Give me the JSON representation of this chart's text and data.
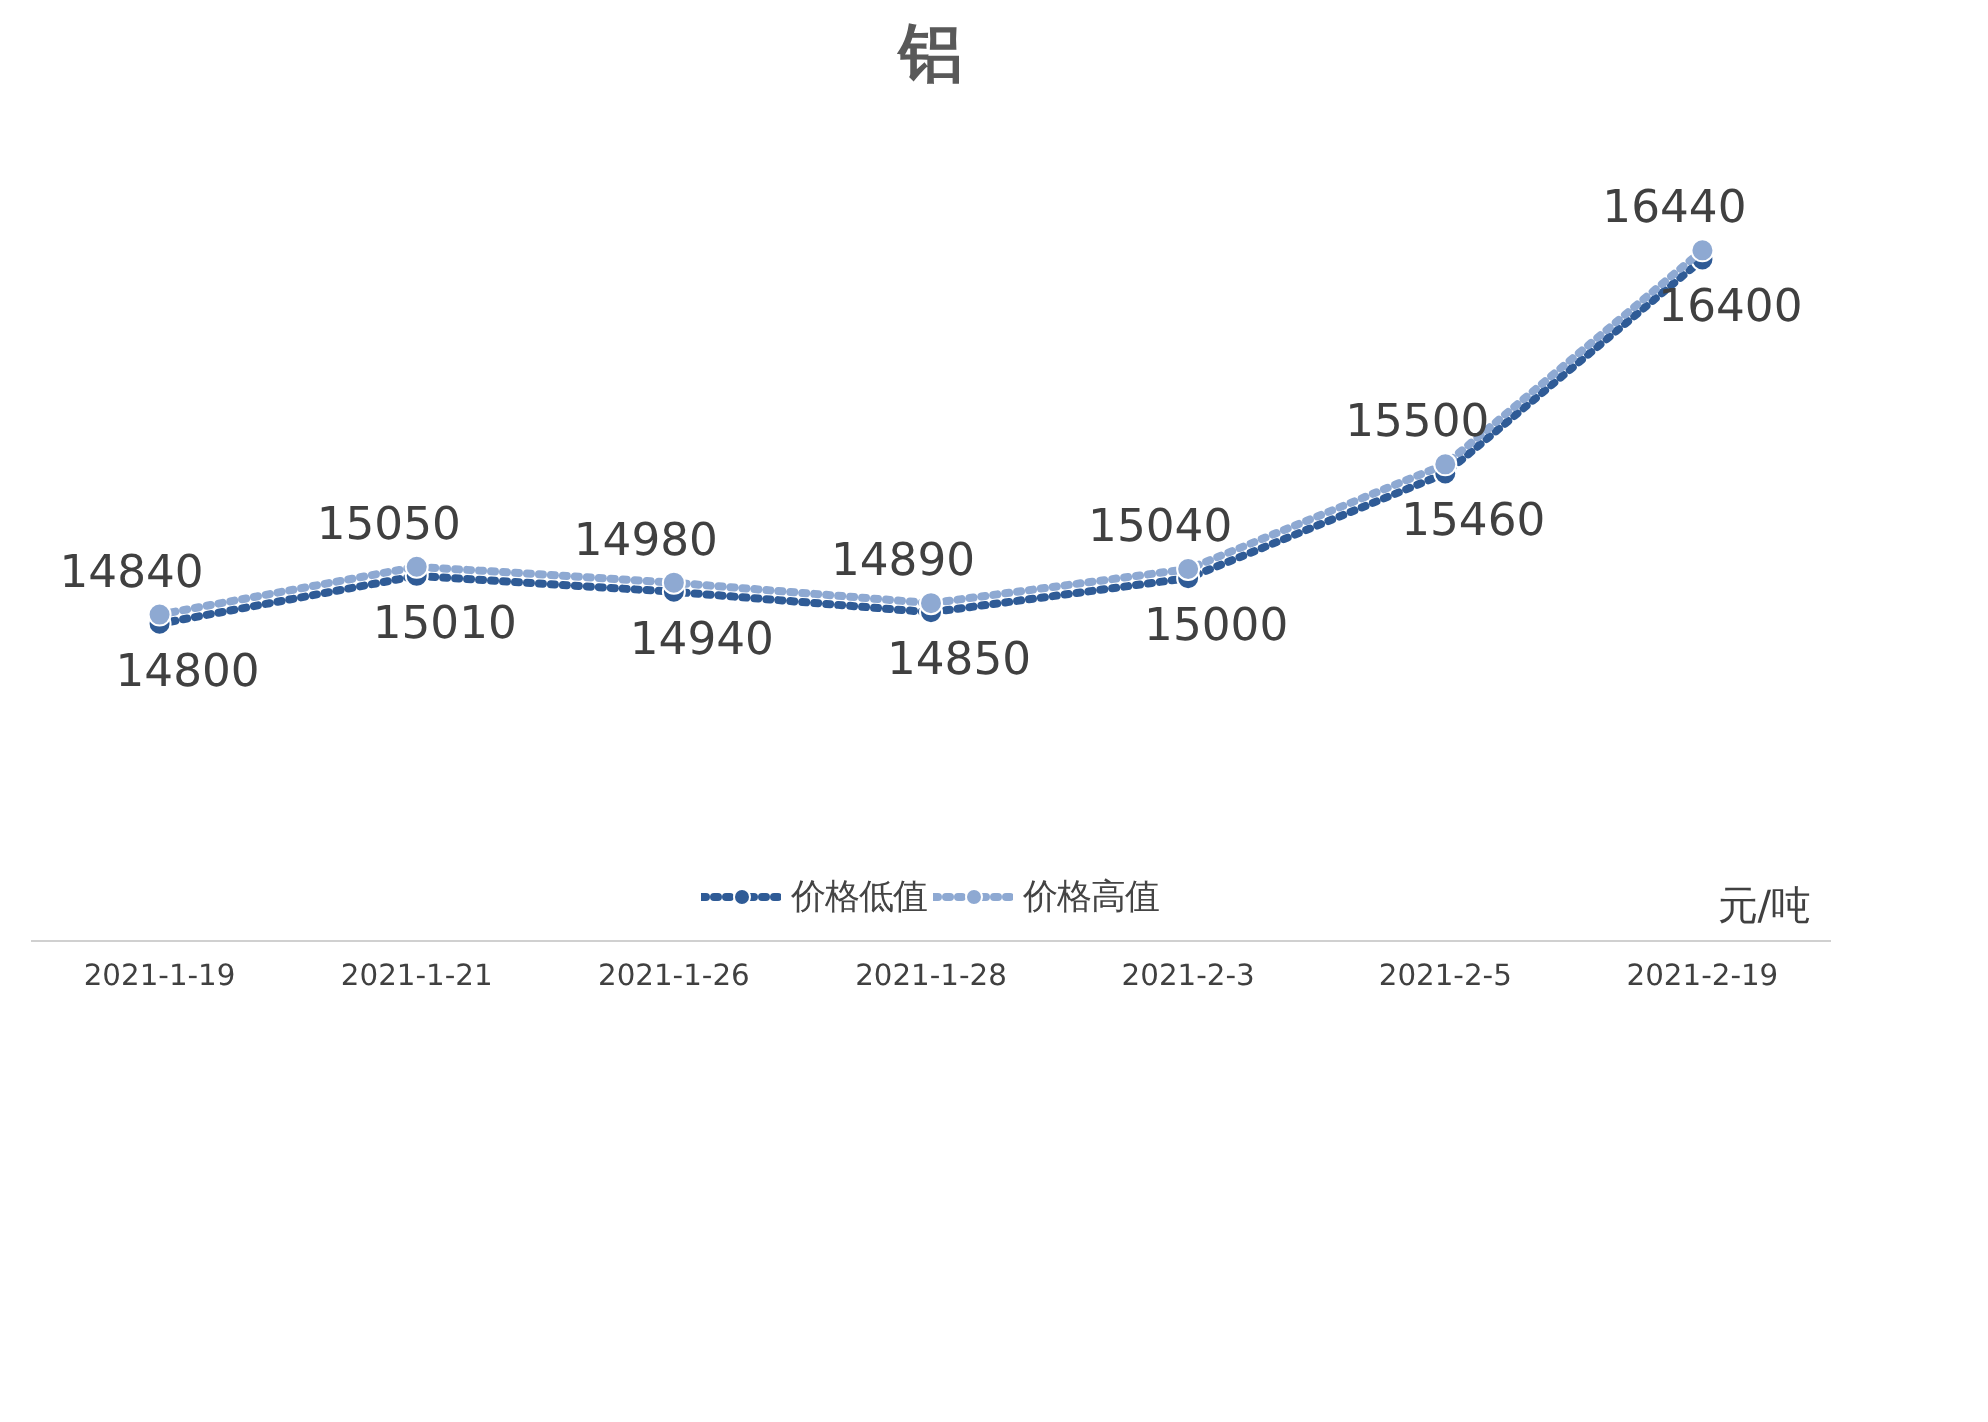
{
  "chart_data": {
    "type": "line",
    "title": "铝",
    "categories": [
      "2021-1-19",
      "2021-1-21",
      "2021-1-26",
      "2021-1-28",
      "2021-2-3",
      "2021-2-5",
      "2021-2-19"
    ],
    "series": [
      {
        "name": "价格低值",
        "color": "#2f5b96",
        "values": [
          14800,
          15010,
          14940,
          14850,
          15000,
          15460,
          16400
        ]
      },
      {
        "name": "价格高值",
        "color": "#8ea9d2",
        "values": [
          14840,
          15050,
          14980,
          14890,
          15040,
          15500,
          16440
        ]
      }
    ],
    "annotations": [
      "元/吨"
    ],
    "data_labels": true,
    "legend": "bottom",
    "marker": "circle",
    "line_style": "dotted",
    "grid": false
  }
}
